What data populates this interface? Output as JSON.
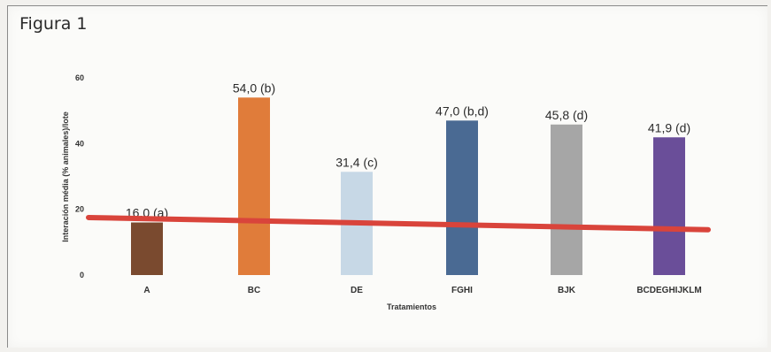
{
  "figure_label": "Figura 1",
  "chart_data": {
    "type": "bar",
    "xlabel": "Tratamientos",
    "ylabel": "Interación média (% animales)/lote",
    "ylim": [
      0,
      60
    ],
    "yticks": [
      0,
      20,
      40,
      60
    ],
    "categories": [
      "A",
      "BC",
      "DE",
      "FGHI",
      "BJK",
      "BCDEGHIJKLM"
    ],
    "values": [
      16.0,
      54.0,
      31.4,
      47.0,
      45.8,
      41.9
    ],
    "data_labels": [
      "16,0 (a)",
      "54,0 (b)",
      "31,4 (c)",
      "47,0 (b,d)",
      "45,8 (d)",
      "41,9 (d)"
    ],
    "colors": [
      "#7a4a2f",
      "#e07c3a",
      "#c7d8e6",
      "#4a6a93",
      "#a6a6a6",
      "#6a4e99"
    ],
    "trend_line": {
      "color": "#d9443b",
      "start_value": 17.5,
      "end_value": 13.8
    },
    "grid": false,
    "legend": "none"
  }
}
